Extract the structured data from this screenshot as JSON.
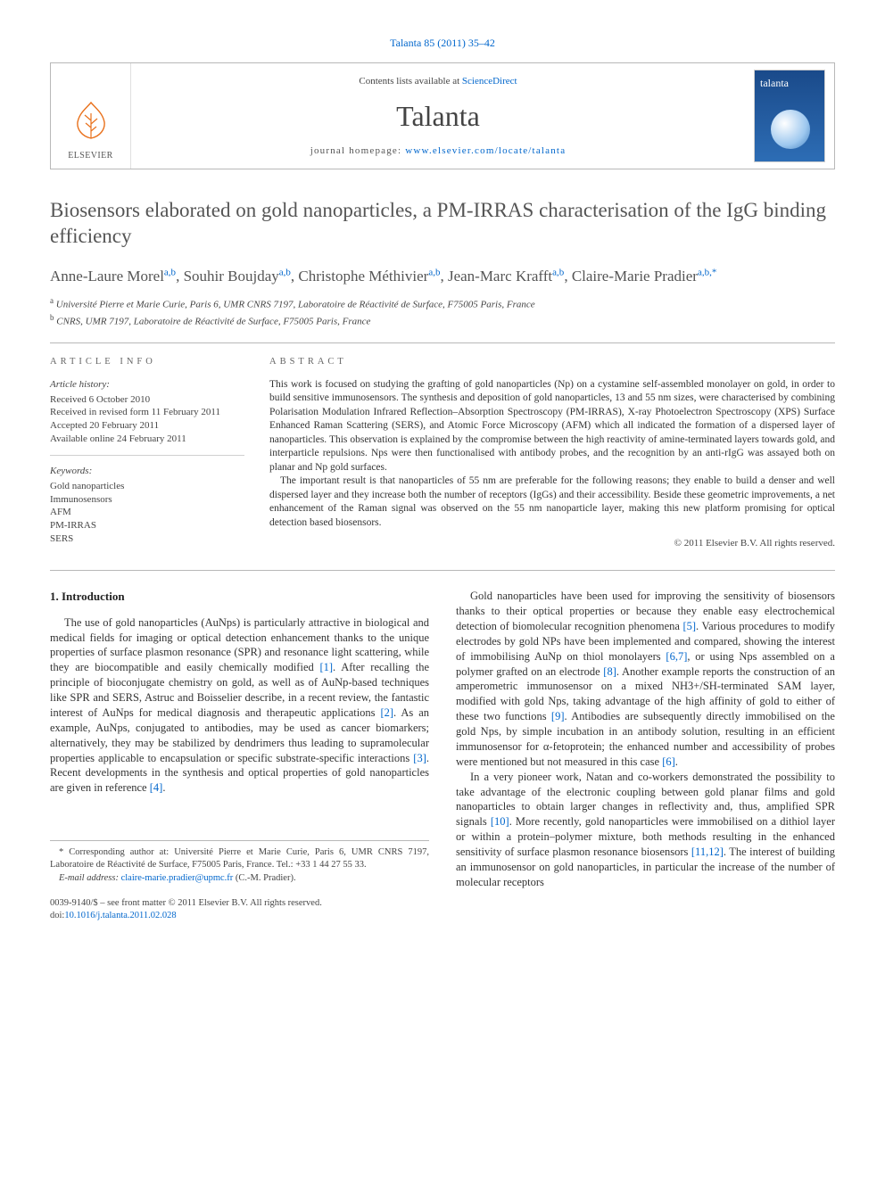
{
  "journal_ref": "Talanta 85 (2011) 35–42",
  "masthead": {
    "publisher_label": "ELSEVIER",
    "contents_prefix": "Contents lists available at ",
    "contents_link": "ScienceDirect",
    "journal_name": "Talanta",
    "homepage_prefix": "journal homepage: ",
    "homepage_url": "www.elsevier.com/locate/talanta",
    "cover_title": "talanta"
  },
  "article": {
    "title": "Biosensors elaborated on gold nanoparticles, a PM-IRRAS characterisation of the IgG binding efficiency",
    "authors_html": "Anne-Laure Morel<sup>a,b</sup>, Souhir Boujday<sup>a,b</sup>, Christophe Méthivier<sup>a,b</sup>, Jean-Marc Krafft<sup>a,b</sup>, Claire-Marie Pradier<sup>a,b,*</sup>",
    "affiliations": {
      "a": "Université Pierre et Marie Curie, Paris 6, UMR CNRS 7197, Laboratoire de Réactivité de Surface, F75005 Paris, France",
      "b": "CNRS, UMR 7197, Laboratoire de Réactivité de Surface, F75005 Paris, France"
    }
  },
  "info": {
    "article_info_label": "ARTICLE INFO",
    "abstract_label": "ABSTRACT",
    "history_head": "Article history:",
    "history": {
      "received": "Received 6 October 2010",
      "revised": "Received in revised form 11 February 2011",
      "accepted": "Accepted 20 February 2011",
      "online": "Available online 24 February 2011"
    },
    "keywords_head": "Keywords:",
    "keywords": [
      "Gold nanoparticles",
      "Immunosensors",
      "AFM",
      "PM-IRRAS",
      "SERS"
    ]
  },
  "abstract": {
    "p1": "This work is focused on studying the grafting of gold nanoparticles (Np) on a cystamine self-assembled monolayer on gold, in order to build sensitive immunosensors. The synthesis and deposition of gold nanoparticles, 13 and 55 nm sizes, were characterised by combining Polarisation Modulation Infrared Reflection–Absorption Spectroscopy (PM-IRRAS), X-ray Photoelectron Spectroscopy (XPS) Surface Enhanced Raman Scattering (SERS), and Atomic Force Microscopy (AFM) which all indicated the formation of a dispersed layer of nanoparticles. This observation is explained by the compromise between the high reactivity of amine-terminated layers towards gold, and interparticle repulsions. Nps were then functionalised with antibody probes, and the recognition by an anti-rIgG was assayed both on planar and Np gold surfaces.",
    "p2": "The important result is that nanoparticles of 55 nm are preferable for the following reasons; they enable to build a denser and well dispersed layer and they increase both the number of receptors (IgGs) and their accessibility. Beside these geometric improvements, a net enhancement of the Raman signal was observed on the 55 nm nanoparticle layer, making this new platform promising for optical detection based biosensors.",
    "copyright": "© 2011 Elsevier B.V. All rights reserved."
  },
  "body": {
    "intro_heading": "1. Introduction",
    "col1_p1": "The use of gold nanoparticles (AuNps) is particularly attractive in biological and medical fields for imaging or optical detection enhancement thanks to the unique properties of surface plasmon resonance (SPR) and resonance light scattering, while they are biocompatible and easily chemically modified [1]. After recalling the principle of bioconjugate chemistry on gold, as well as of AuNp-based techniques like SPR and SERS, Astruc and Boisselier describe, in a recent review, the fantastic interest of AuNps for medical diagnosis and therapeutic applications [2]. As an example, AuNps, conjugated to antibodies, may be used as cancer biomarkers; alternatively, they may be stabilized by dendrimers thus leading to supramolecular properties applicable to encapsulation or specific substrate-specific interactions [3]. Recent developments in the synthesis and optical properties of gold nanoparticles are given in reference [4].",
    "col2_p1": "Gold nanoparticles have been used for improving the sensitivity of biosensors thanks to their optical properties or because they enable easy electrochemical detection of biomolecular recognition phenomena [5]. Various procedures to modify electrodes by gold NPs have been implemented and compared, showing the interest of immobilising AuNp on thiol monolayers [6,7], or using Nps assembled on a polymer grafted on an electrode [8]. Another example reports the construction of an amperometric immunosensor on a mixed NH3+/SH-terminated SAM layer, modified with gold Nps, taking advantage of the high affinity of gold to either of these two functions [9]. Antibodies are subsequently directly immobilised on the gold Nps, by simple incubation in an antibody solution, resulting in an efficient immunosensor for α-fetoprotein; the enhanced number and accessibility of probes were mentioned but not measured in this case [6].",
    "col2_p2": "In a very pioneer work, Natan and co-workers demonstrated the possibility to take advantage of the electronic coupling between gold planar films and gold nanoparticles to obtain larger changes in reflectivity and, thus, amplified SPR signals [10]. More recently, gold nanoparticles were immobilised on a dithiol layer or within a protein–polymer mixture, both methods resulting in the enhanced sensitivity of surface plasmon resonance biosensors [11,12]. The interest of building an immunosensor on gold nanoparticles, in particular the increase of the number of molecular receptors"
  },
  "corresponding": {
    "label": "* Corresponding author at: Université Pierre et Marie Curie, Paris 6, UMR CNRS 7197, Laboratoire de Réactivité de Surface, F75005 Paris, France. Tel.: +33 1 44 27 55 33.",
    "email_label": "E-mail address: ",
    "email": "claire-marie.pradier@upmc.fr",
    "email_suffix": " (C.-M. Pradier)."
  },
  "footer": {
    "line1": "0039-9140/$ – see front matter © 2011 Elsevier B.V. All rights reserved.",
    "line2": "doi:10.1016/j.talanta.2011.02.028"
  },
  "colors": {
    "link": "#0066cc",
    "rule": "#b8b8b8",
    "text": "#333333",
    "muted": "#555555",
    "orange": "#e9711c",
    "cover_bg_top": "#1a4a8a",
    "cover_bg_bot": "#2d6db5"
  }
}
